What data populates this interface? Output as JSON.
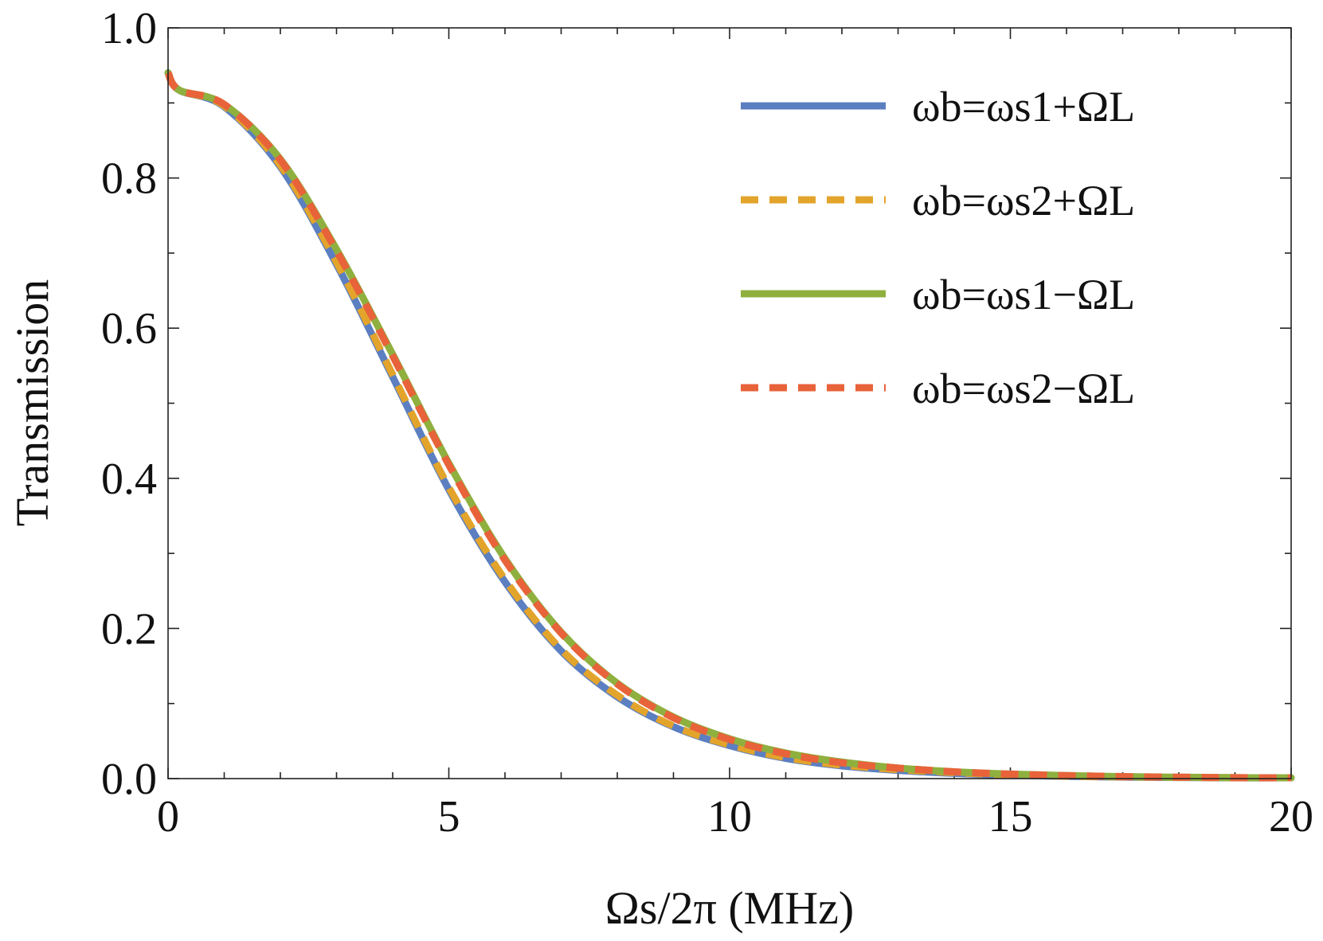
{
  "chart_data": {
    "type": "line",
    "xlabel": "Ωs/2π (MHz)",
    "ylabel": "Transmission",
    "xlim": [
      0,
      20
    ],
    "ylim": [
      0,
      1.0
    ],
    "x_ticks": [
      "0",
      "5",
      "10",
      "15",
      "20"
    ],
    "y_ticks": [
      "0.0",
      "0.2",
      "0.4",
      "0.6",
      "0.8",
      "1.0"
    ],
    "grid": false,
    "legend_position": "top-right",
    "series": [
      {
        "name": "ωb=ωs1+ΩL",
        "color": "#5B7FC0",
        "dash": "solid",
        "x": [
          0,
          0.2,
          1,
          2,
          3,
          4,
          5,
          6,
          7,
          8,
          9,
          10,
          11,
          12,
          13,
          14,
          15,
          16,
          17,
          18,
          19,
          20
        ],
        "y": [
          0.94,
          0.917,
          0.895,
          0.815,
          0.685,
          0.535,
          0.385,
          0.262,
          0.17,
          0.109,
          0.069,
          0.044,
          0.027,
          0.017,
          0.011,
          0.007,
          0.0045,
          0.003,
          0.002,
          0.0015,
          0.001,
          0.001
        ]
      },
      {
        "name": "ωb=ωs2+ΩL",
        "color": "#E3A42C",
        "dash": "dashed",
        "x": [
          0,
          0.2,
          1,
          2,
          3,
          4,
          5,
          6,
          7,
          8,
          9,
          10,
          11,
          12,
          13,
          14,
          15,
          16,
          17,
          18,
          19,
          20
        ],
        "y": [
          0.94,
          0.917,
          0.896,
          0.817,
          0.688,
          0.538,
          0.388,
          0.265,
          0.172,
          0.111,
          0.07,
          0.045,
          0.028,
          0.018,
          0.012,
          0.008,
          0.005,
          0.0032,
          0.0022,
          0.0016,
          0.0012,
          0.001
        ]
      },
      {
        "name": "ωb=ωs1−ΩL",
        "color": "#8FB03E",
        "dash": "solid",
        "x": [
          0,
          0.2,
          1,
          2,
          3,
          4,
          5,
          6,
          7,
          8,
          9,
          10,
          11,
          12,
          13,
          14,
          15,
          16,
          17,
          18,
          19,
          20
        ],
        "y": [
          0.94,
          0.917,
          0.898,
          0.825,
          0.705,
          0.565,
          0.42,
          0.293,
          0.195,
          0.127,
          0.082,
          0.053,
          0.034,
          0.022,
          0.014,
          0.009,
          0.006,
          0.004,
          0.0026,
          0.0018,
          0.0012,
          0.001
        ]
      },
      {
        "name": "ωb=ωs2−ΩL",
        "color": "#E8633A",
        "dash": "dashed",
        "x": [
          0,
          0.2,
          1,
          2,
          3,
          4,
          5,
          6,
          7,
          8,
          9,
          10,
          11,
          12,
          13,
          14,
          15,
          16,
          17,
          18,
          19,
          20
        ],
        "y": [
          0.94,
          0.917,
          0.898,
          0.824,
          0.703,
          0.563,
          0.418,
          0.291,
          0.194,
          0.126,
          0.081,
          0.052,
          0.033,
          0.021,
          0.014,
          0.009,
          0.006,
          0.004,
          0.0026,
          0.0018,
          0.0012,
          0.001
        ]
      }
    ]
  }
}
